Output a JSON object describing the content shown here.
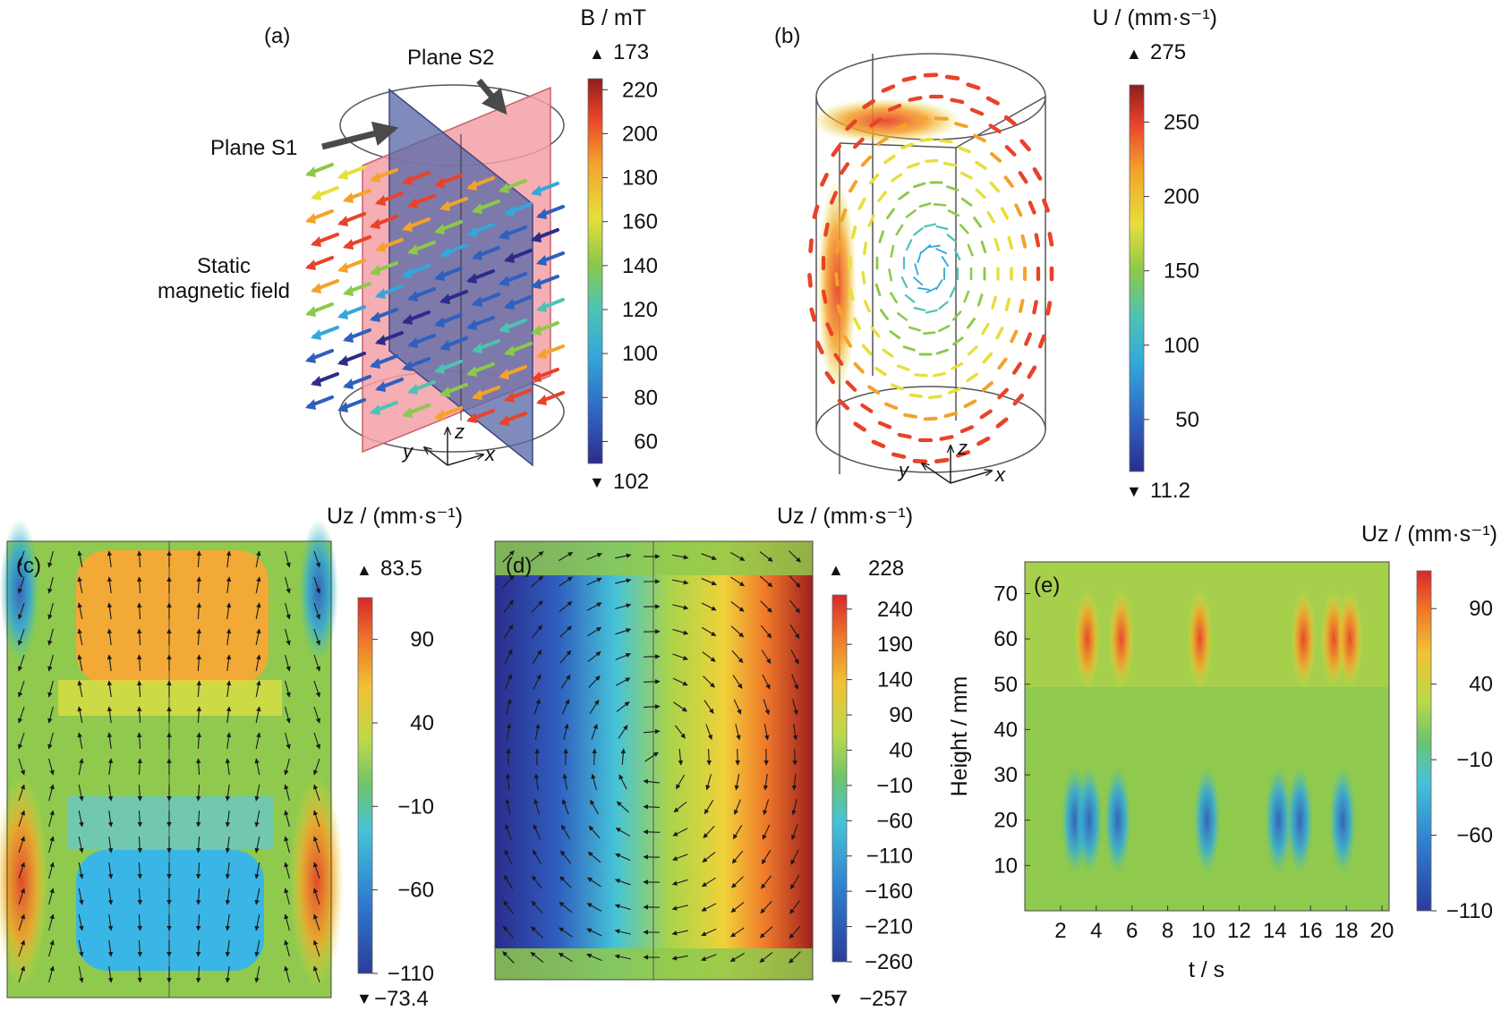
{
  "panel_a": {
    "tag": "(a)",
    "plane_s2": "Plane S2",
    "plane_s1": "Plane S1",
    "field_label_line1": "Static",
    "field_label_line2": "magnetic field",
    "axes": {
      "x": "x",
      "y": "y",
      "z": "z"
    },
    "colorbar": {
      "title": "B / mT",
      "max_marker": "173",
      "min_marker": "102",
      "ticks": [
        "220",
        "200",
        "180",
        "160",
        "140",
        "120",
        "100",
        "80",
        "60"
      ],
      "range": [
        50,
        225
      ]
    }
  },
  "panel_b": {
    "tag": "(b)",
    "axes": {
      "x": "x",
      "y": "y",
      "z": "z"
    },
    "colorbar": {
      "title": "U / (mm·s⁻¹)",
      "max_marker": "275",
      "min_marker": "11.2",
      "ticks": [
        "250",
        "200",
        "150",
        "100",
        "50"
      ],
      "range": [
        15,
        275
      ]
    }
  },
  "panel_c": {
    "tag": "(c)",
    "colorbar": {
      "title": "Uz / (mm·s⁻¹)",
      "max_marker": "83.5",
      "min_marker": "−73.4",
      "ticks": [
        "90",
        "40",
        "−10",
        "−60",
        "−110"
      ],
      "range": [
        -110,
        115
      ]
    }
  },
  "panel_d": {
    "tag": "(d)",
    "colorbar": {
      "title": "Uz / (mm·s⁻¹)",
      "max_marker": "228",
      "min_marker": "−257",
      "ticks": [
        "240",
        "190",
        "140",
        "90",
        "40",
        "−10",
        "−60",
        "−110",
        "−160",
        "−210",
        "−260"
      ],
      "range": [
        -260,
        260
      ]
    }
  },
  "panel_e": {
    "tag": "(e)",
    "xlabel": "t / s",
    "ylabel": "Height / mm",
    "xticks": [
      "2",
      "4",
      "6",
      "8",
      "10",
      "12",
      "14",
      "16",
      "18",
      "20"
    ],
    "yticks": [
      "10",
      "20",
      "30",
      "40",
      "50",
      "60",
      "70"
    ],
    "colorbar": {
      "title": "Uz / (mm·s⁻¹)",
      "ticks": [
        "90",
        "40",
        "−10",
        "−60",
        "−110"
      ],
      "range": [
        -110,
        115
      ]
    }
  },
  "colors": {
    "jet": [
      "#2b2c8c",
      "#2f5fbf",
      "#33a7db",
      "#4cc3b5",
      "#8cc94a",
      "#e6df3a",
      "#f4a22b",
      "#e8432a",
      "#8f1d1d"
    ],
    "plane_s1": "#5b6aa8",
    "plane_s2": "#f3a0a6",
    "arrow": "#1a1a1a"
  }
}
